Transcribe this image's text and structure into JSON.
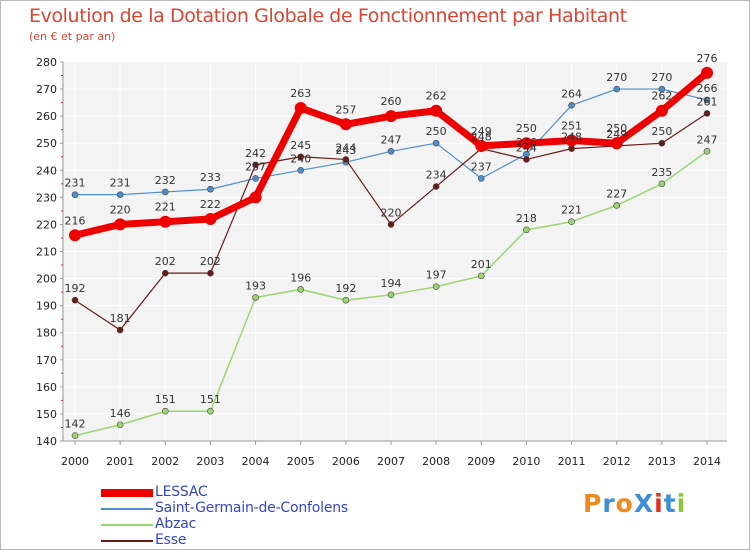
{
  "title": "Evolution de la Dotation Globale de Fonctionnement par Habitant",
  "subtitle": "(en € et par an)",
  "logo": {
    "text": "ProXiti",
    "letter_colors": [
      "#f08a1a",
      "#3a8fd6",
      "#f08a1a",
      "#3a8fd6",
      "#e03020",
      "#3a8fd6",
      "#8cc63f"
    ]
  },
  "chart_data": {
    "type": "line",
    "x": [
      2000,
      2001,
      2002,
      2003,
      2004,
      2005,
      2006,
      2007,
      2008,
      2009,
      2010,
      2011,
      2012,
      2013,
      2014
    ],
    "ylim": [
      140,
      280
    ],
    "yticks": [
      140,
      150,
      160,
      170,
      180,
      190,
      200,
      210,
      220,
      230,
      240,
      250,
      260,
      270,
      280
    ],
    "grid": true,
    "legend_position": "bottom-left",
    "series": [
      {
        "name": "Saint-Germain-de-Confolens",
        "color": "#4d8fcc",
        "values": [
          231,
          231,
          232,
          233,
          237,
          240,
          243,
          247,
          250,
          237,
          246,
          264,
          270,
          270,
          266
        ]
      },
      {
        "name": "Abzac",
        "color": "#99d66e",
        "values": [
          142,
          146,
          151,
          151,
          193,
          196,
          192,
          194,
          197,
          201,
          218,
          221,
          227,
          235,
          247
        ]
      },
      {
        "name": "Esse",
        "color": "#6b1a1a",
        "values": [
          192,
          181,
          202,
          202,
          242,
          245,
          244,
          220,
          234,
          248,
          244,
          248,
          249,
          250,
          261
        ]
      },
      {
        "name": "LESSAC",
        "color": "#ee0000",
        "values": [
          216,
          220,
          221,
          222,
          230,
          263,
          257,
          260,
          262,
          249,
          250,
          251,
          250,
          262,
          276
        ]
      }
    ],
    "point_labels": {
      "Saint-Germain-de-Confolens": [
        "231",
        "231",
        "232",
        "233",
        "237",
        "240",
        "243",
        "247",
        "250",
        "237",
        "246",
        "264",
        "270",
        "270",
        "266"
      ],
      "Abzac": [
        "142",
        "146",
        "151",
        "151",
        "193",
        "196",
        "192",
        "194",
        "197",
        "201",
        "218",
        "221",
        "227",
        "235",
        "247"
      ],
      "Esse": [
        "192",
        "181",
        "202",
        "202",
        "242",
        "245",
        "244",
        "220",
        "234",
        "248",
        "244",
        "248",
        "249",
        "250",
        "261"
      ],
      "LESSAC": [
        "216",
        "220",
        "221",
        "222",
        "",
        "263",
        "257",
        "260",
        "262",
        "249",
        "250",
        "251",
        "250",
        "262",
        "276"
      ]
    },
    "legend_order": [
      "LESSAC",
      "Saint-Germain-de-Confolens",
      "Abzac",
      "Esse"
    ]
  }
}
